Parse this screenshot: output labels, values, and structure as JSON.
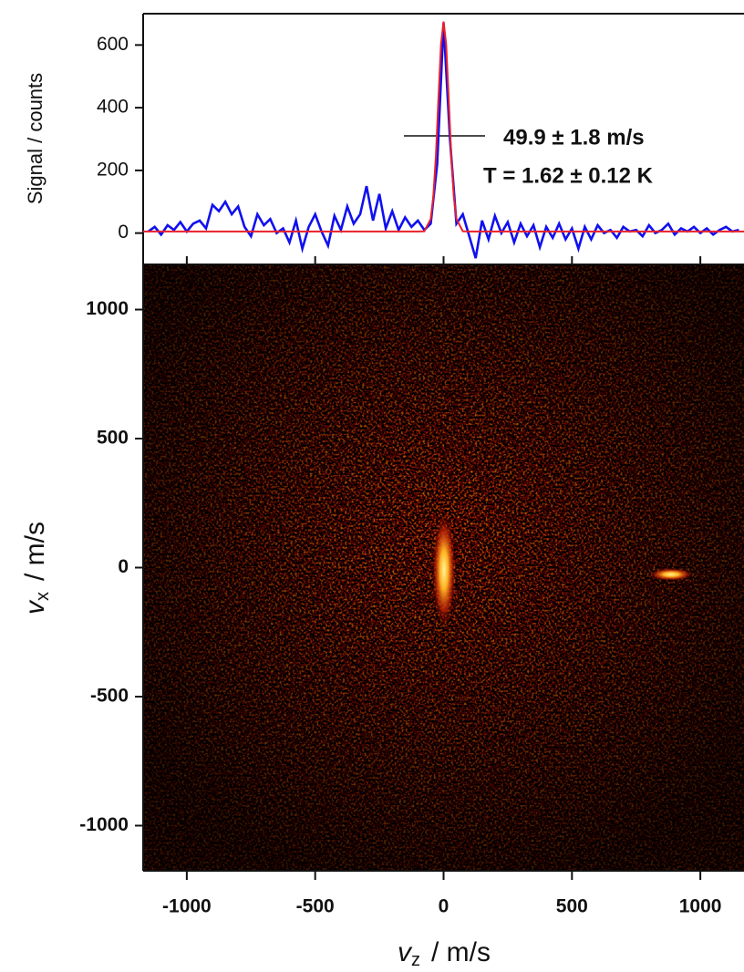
{
  "chart_data": [
    {
      "type": "line",
      "ylabel": "Signal  /  counts",
      "xlim": [
        -1170,
        1170
      ],
      "ylim": [
        -100,
        700
      ],
      "yticks": [
        0,
        200,
        400,
        600
      ],
      "annotations": [
        "49.9 ± 1.8 m/s",
        "T = 1.62 ± 0.12 K"
      ],
      "series": [
        {
          "color": "#1010f0",
          "x": [
            -1150,
            -1125,
            -1100,
            -1075,
            -1050,
            -1025,
            -1000,
            -975,
            -950,
            -925,
            -900,
            -875,
            -850,
            -825,
            -800,
            -775,
            -750,
            -725,
            -700,
            -675,
            -650,
            -625,
            -600,
            -575,
            -550,
            -525,
            -500,
            -475,
            -450,
            -425,
            -400,
            -375,
            -350,
            -325,
            -300,
            -275,
            -250,
            -225,
            -200,
            -175,
            -150,
            -125,
            -100,
            -75,
            -50,
            -25,
            0,
            25,
            50,
            75,
            100,
            125,
            150,
            175,
            200,
            225,
            250,
            275,
            300,
            325,
            350,
            375,
            400,
            425,
            450,
            475,
            500,
            525,
            550,
            575,
            600,
            625,
            650,
            675,
            700,
            725,
            750,
            775,
            800,
            825,
            850,
            875,
            900,
            925,
            950,
            975,
            1000,
            1025,
            1050,
            1075,
            1100,
            1125,
            1150
          ],
          "values": [
            5,
            20,
            -5,
            25,
            10,
            35,
            5,
            30,
            40,
            15,
            90,
            70,
            100,
            60,
            85,
            20,
            -10,
            60,
            25,
            45,
            0,
            15,
            -30,
            40,
            -50,
            20,
            60,
            5,
            -40,
            55,
            10,
            85,
            30,
            60,
            150,
            40,
            125,
            15,
            70,
            10,
            50,
            20,
            40,
            10,
            30,
            220,
            670,
            300,
            30,
            60,
            -10,
            -80,
            40,
            -20,
            55,
            0,
            35,
            -30,
            30,
            -10,
            25,
            -45,
            20,
            -15,
            30,
            -20,
            15,
            -50,
            20,
            -20,
            25,
            0,
            10,
            -15,
            20,
            5,
            10,
            -10,
            25,
            0,
            10,
            30,
            -5,
            15,
            5,
            20,
            0,
            15,
            -5,
            10,
            20,
            5,
            10
          ]
        },
        {
          "color": "#e8202a",
          "x": [
            -1170,
            -100,
            -75,
            -50,
            -40,
            -30,
            -20,
            -10,
            0,
            10,
            20,
            30,
            40,
            50,
            75,
            100,
            1170
          ],
          "values": [
            5,
            5,
            6,
            45,
            114,
            246,
            430,
            603,
            675,
            603,
            430,
            246,
            114,
            45,
            6,
            5,
            5
          ]
        }
      ]
    },
    {
      "type": "heatmap",
      "xlabel": {
        "symbol": "v",
        "subscript": "z",
        "unit": "/  m/s"
      },
      "ylabel": {
        "symbol": "v",
        "subscript": "x",
        "unit": "/  m/s"
      },
      "xlim": [
        -1170,
        1170
      ],
      "ylim": [
        -1175,
        1175
      ],
      "xticks": [
        -1000,
        -500,
        0,
        500,
        1000
      ],
      "yticks": [
        -1000,
        -500,
        0,
        500,
        1000
      ]
    }
  ]
}
